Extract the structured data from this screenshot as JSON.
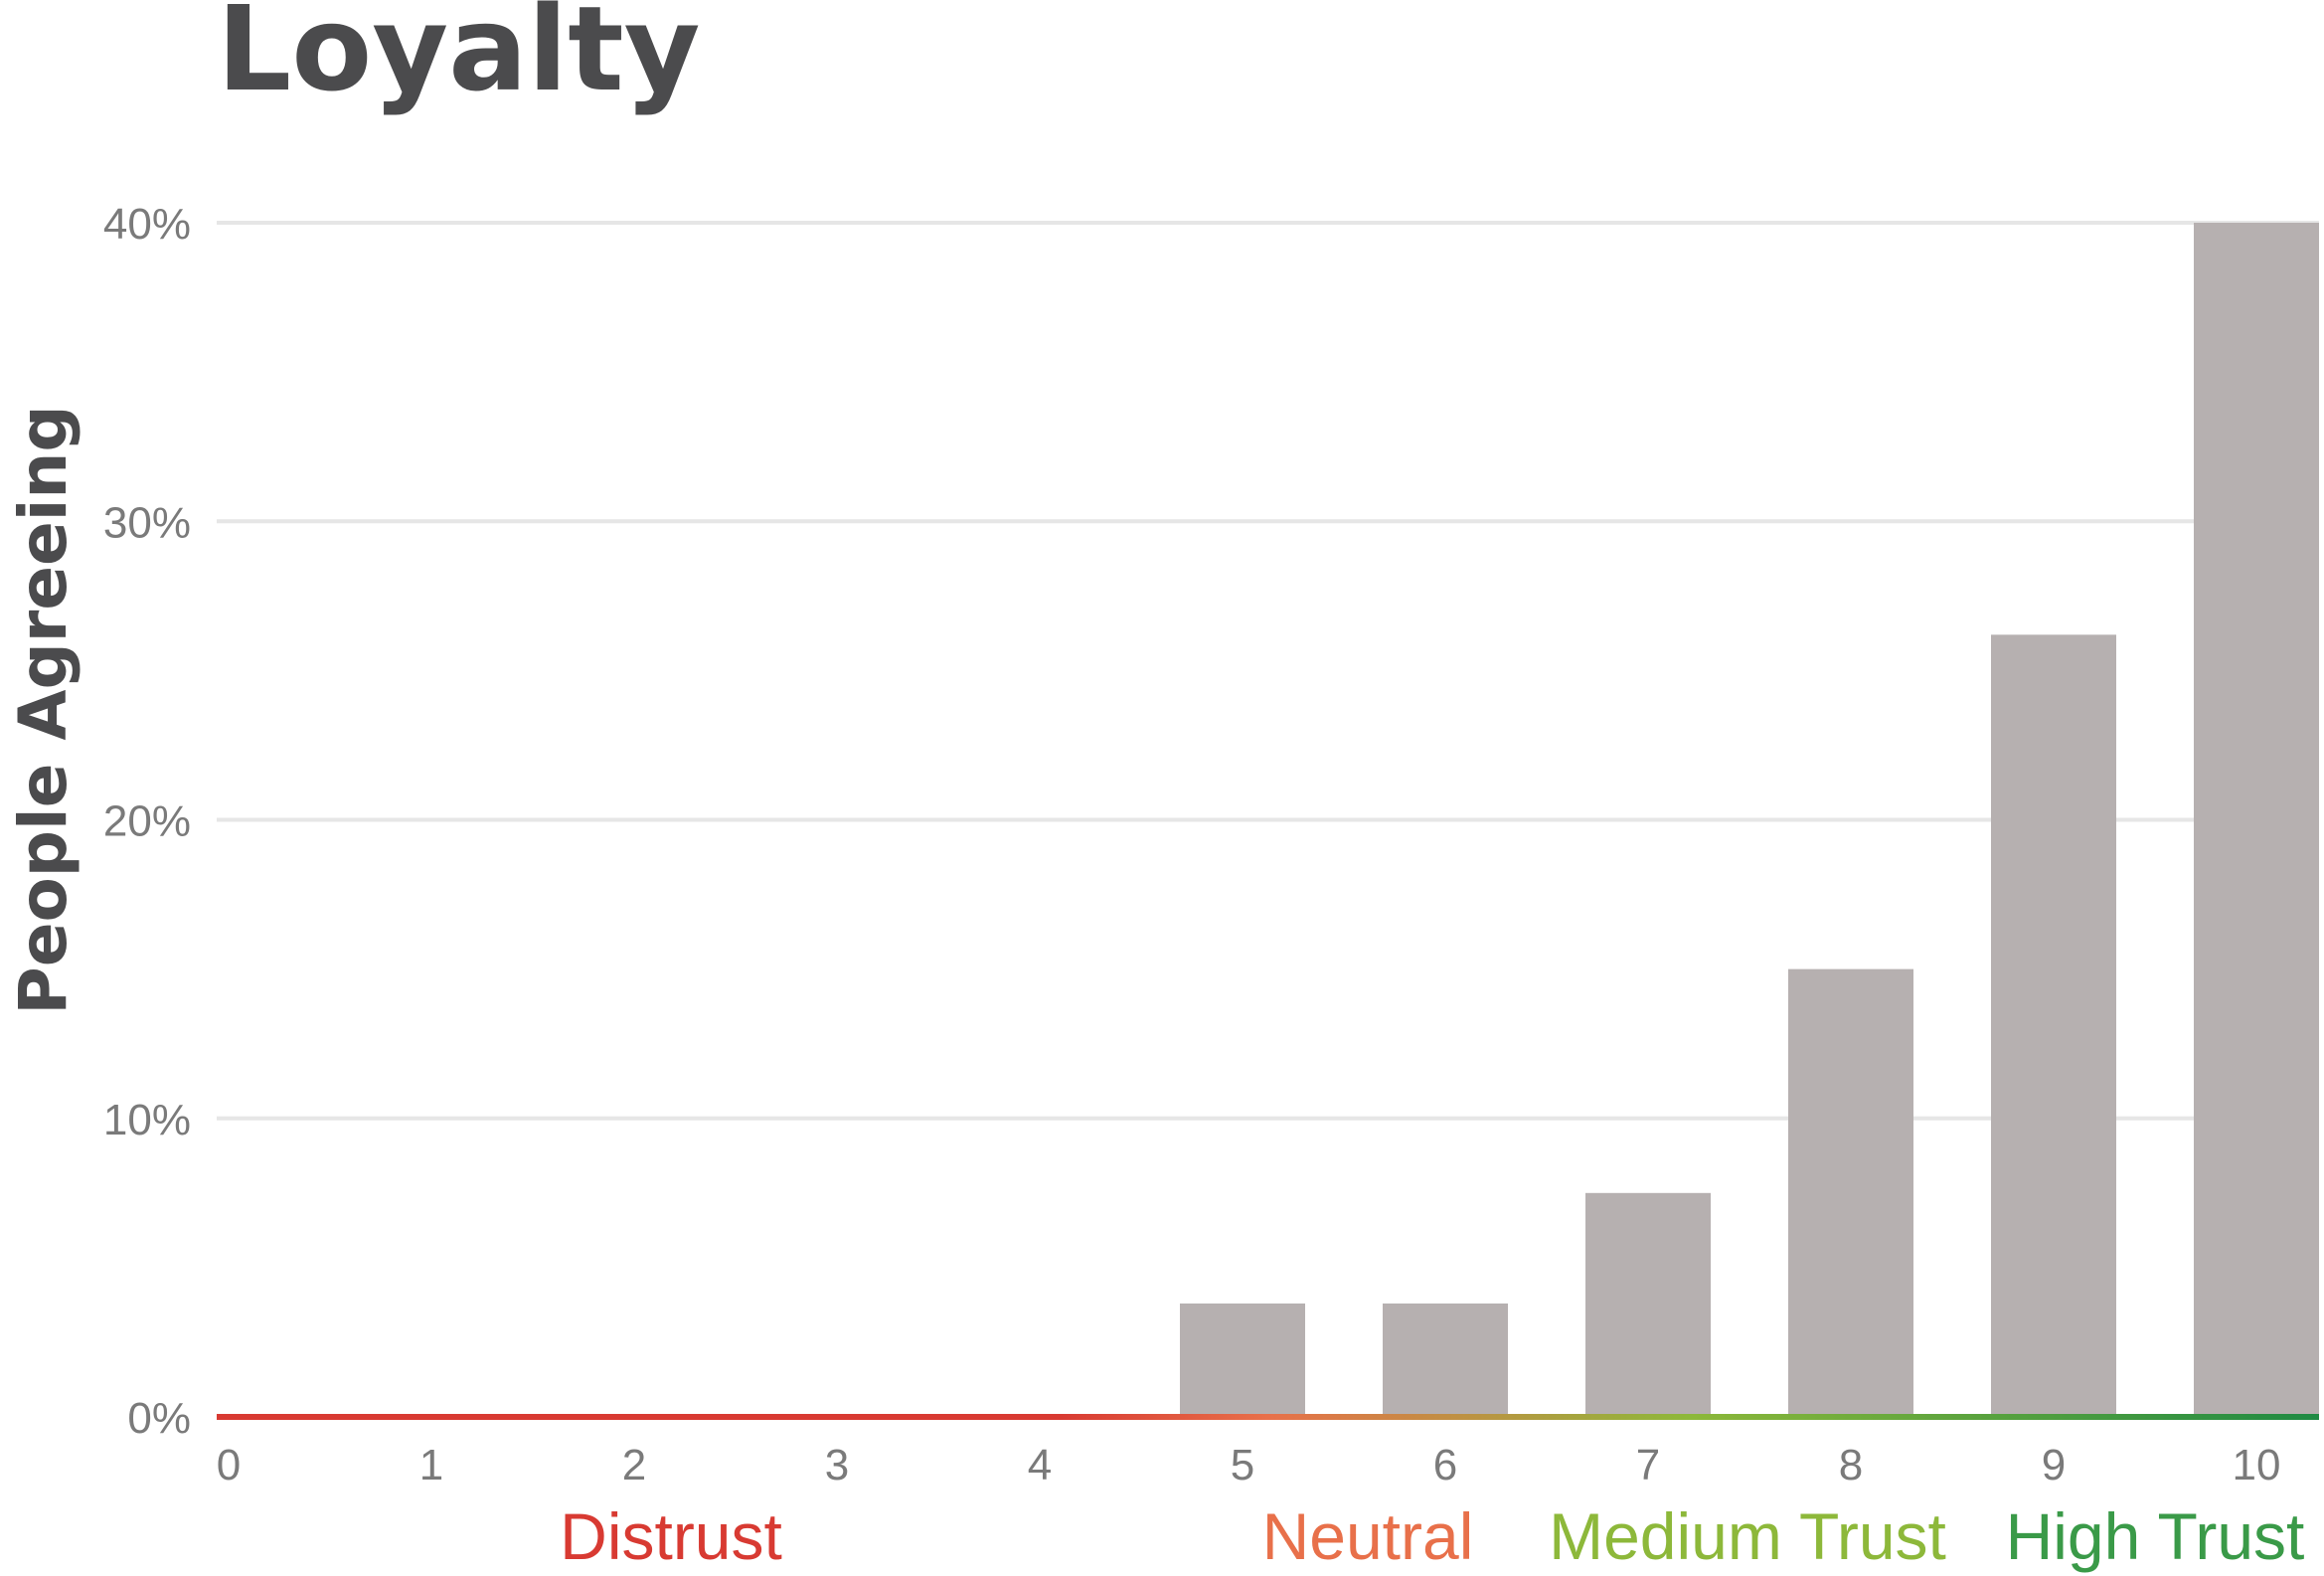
{
  "chart_data": {
    "type": "bar",
    "title": "Loyalty",
    "xlabel": "",
    "ylabel": "People Agreeing",
    "categories": [
      "0",
      "1",
      "2",
      "3",
      "4",
      "5",
      "6",
      "7",
      "8",
      "9",
      "10"
    ],
    "values": [
      0,
      0,
      0,
      0,
      0,
      3.8,
      3.8,
      7.5,
      15.0,
      26.2,
      40.0
    ],
    "ylim": [
      0,
      40
    ],
    "yticks": [
      {
        "value": 0,
        "label": "0%"
      },
      {
        "value": 10,
        "label": "10%"
      },
      {
        "value": 20,
        "label": "20%"
      },
      {
        "value": 30,
        "label": "30%"
      },
      {
        "value": 40,
        "label": "40%"
      }
    ],
    "grid": true,
    "bar_color": "#b6b0b0",
    "baseline_gradient": [
      "#d83a32",
      "#d83a32",
      "#e8704a",
      "#8db83a",
      "#1e8a43"
    ],
    "bands": [
      {
        "label": "Distrust",
        "color": "#d83a32",
        "from": 0,
        "to": 4
      },
      {
        "label": "Neutral",
        "color": "#e8704a",
        "from": 5,
        "to": 6
      },
      {
        "label": "Medium Trust",
        "color": "#8db83a",
        "from": 7,
        "to": 8
      },
      {
        "label": "High Trust",
        "color": "#3a9a48",
        "from": 9,
        "to": 10
      }
    ]
  }
}
